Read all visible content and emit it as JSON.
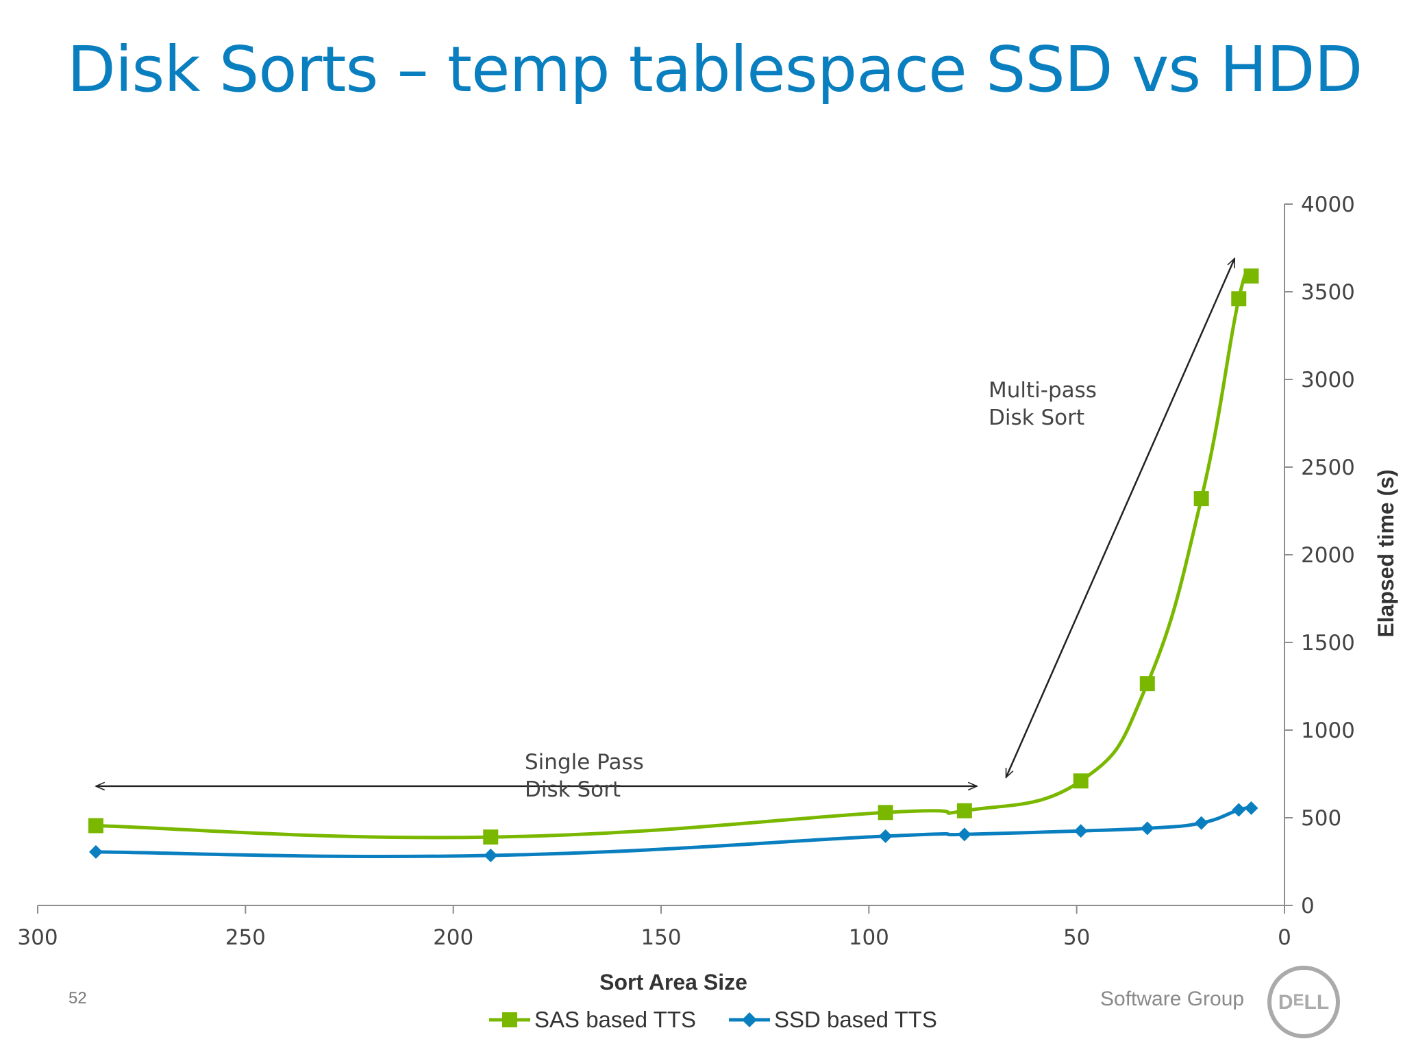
{
  "slide": {
    "title": "Disk Sorts – temp tablespace SSD vs HDD",
    "page_number": "52",
    "footer_brand": "Software Group",
    "logo_text": "DELL"
  },
  "chart_data": {
    "type": "line",
    "title": "",
    "xlabel": "Sort Area Size",
    "ylabel": "Elapsed time (s)",
    "x_reversed": true,
    "y_axis_position": "right",
    "xlim": [
      300,
      0
    ],
    "ylim": [
      0,
      4000
    ],
    "x_ticks": [
      300,
      250,
      200,
      150,
      100,
      50,
      0
    ],
    "y_ticks": [
      0,
      500,
      1000,
      1500,
      2000,
      2500,
      3000,
      3500,
      4000
    ],
    "grid": false,
    "legend_position": "bottom",
    "colors": {
      "sas": "#7ab800",
      "ssd": "#0a7fc0",
      "axis": "#8c8c8c",
      "annotation": "#222222"
    },
    "series": [
      {
        "name": "SAS based TTS",
        "marker": "square",
        "x": [
          286,
          191,
          96,
          77,
          49,
          33,
          20,
          11,
          8
        ],
        "y": [
          455,
          390,
          530,
          540,
          710,
          1265,
          2320,
          3460,
          3590
        ]
      },
      {
        "name": "SSD based TTS",
        "marker": "diamond",
        "x": [
          286,
          191,
          96,
          77,
          49,
          33,
          20,
          11,
          8
        ],
        "y": [
          305,
          285,
          395,
          405,
          425,
          440,
          470,
          545,
          555
        ]
      }
    ],
    "annotations": [
      {
        "lines": [
          "Single Pass",
          "Disk Sort"
        ],
        "arrow": "double-horizontal",
        "from_x": 286,
        "to_x": 74,
        "at_y": 680
      },
      {
        "lines": [
          "Multi-pass",
          "Disk Sort"
        ],
        "arrow": "double-diagonal",
        "from": [
          67,
          730
        ],
        "to": [
          12,
          3690
        ]
      }
    ]
  }
}
